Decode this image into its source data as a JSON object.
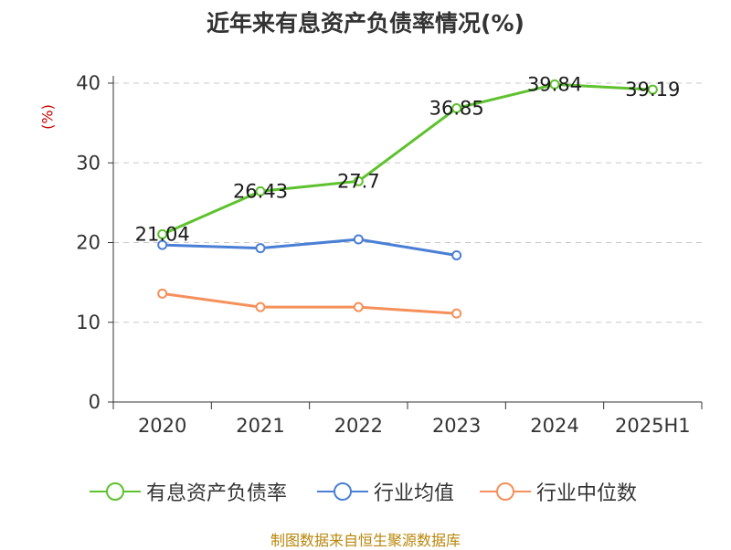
{
  "chart_data": {
    "type": "line",
    "title": "近年来有息资产负债率情况(%)",
    "ylabel": "(%)",
    "categories": [
      "2020",
      "2021",
      "2022",
      "2023",
      "2024",
      "2025H1"
    ],
    "ylim": [
      0,
      40
    ],
    "yticks": [
      0,
      10,
      20,
      30,
      40
    ],
    "grid": true,
    "legend_position": "bottom",
    "series": [
      {
        "name": "有息资产负债率",
        "color": "#5ec22e",
        "values": [
          21.04,
          26.43,
          27.7,
          36.85,
          39.84,
          39.19
        ],
        "labels": [
          "21.04",
          "26.43",
          "27.7",
          "36.85",
          "39.84",
          "39.19"
        ]
      },
      {
        "name": "行业均值",
        "color": "#4a7fd6",
        "values": [
          19.7,
          19.3,
          20.4,
          18.4,
          null,
          null
        ]
      },
      {
        "name": "行业中位数",
        "color": "#f5905a",
        "values": [
          13.6,
          11.9,
          11.9,
          11.1,
          null,
          null
        ]
      }
    ]
  },
  "source": "制图数据来自恒生聚源数据库"
}
